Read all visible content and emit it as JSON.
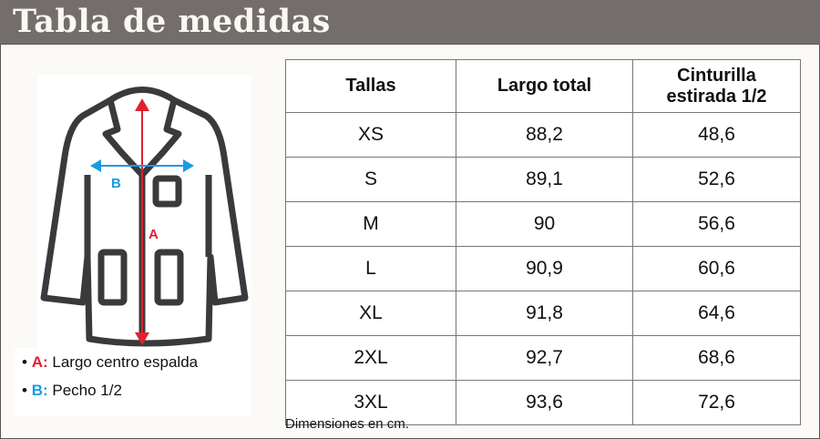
{
  "title": "Tabla de medidas",
  "table": {
    "headers": [
      "Tallas",
      "Largo total",
      "Cinturilla estirada 1/2"
    ],
    "rows": [
      [
        "XS",
        "88,2",
        "48,6"
      ],
      [
        "S",
        "89,1",
        "52,6"
      ],
      [
        "M",
        "90",
        "56,6"
      ],
      [
        "L",
        "90,9",
        "60,6"
      ],
      [
        "XL",
        "91,8",
        "64,6"
      ],
      [
        "2XL",
        "92,7",
        "68,6"
      ],
      [
        "3XL",
        "93,6",
        "72,6"
      ]
    ]
  },
  "figure": {
    "label_a": "A",
    "label_b": "B",
    "color_a": "#e0202f",
    "color_b": "#1a9be0"
  },
  "legend": [
    {
      "key": "A:",
      "text": "Largo centro espalda"
    },
    {
      "key": "B:",
      "text": "Pecho 1/2"
    }
  ],
  "note": "Dimensiones en cm."
}
